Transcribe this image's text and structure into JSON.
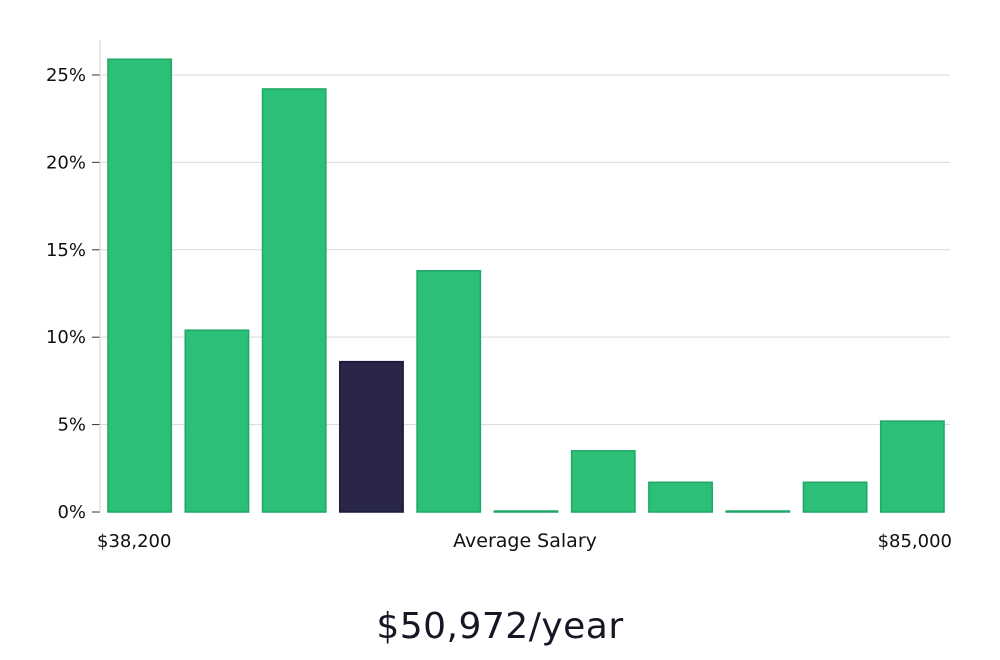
{
  "chart_data": {
    "type": "bar",
    "ylim": [
      0,
      27
    ],
    "yticks": [
      0,
      5,
      10,
      15,
      20,
      25
    ],
    "ytick_suffix": "%",
    "values": [
      25.9,
      10.4,
      24.2,
      8.6,
      13.8,
      0.05,
      3.5,
      1.7,
      0.05,
      1.7,
      5.2
    ],
    "highlight_index": 3,
    "x_min_label": "$38,200",
    "x_max_label": "$85,000",
    "xlabel": "Average Salary",
    "grid": true,
    "colors": {
      "bar": "#2bbf78",
      "bar_edge": "#1fa866",
      "highlight": "#29264a",
      "grid": "#d9d9d9",
      "axis": "#cfcfcf"
    }
  },
  "salary_label": "$50,972/year"
}
